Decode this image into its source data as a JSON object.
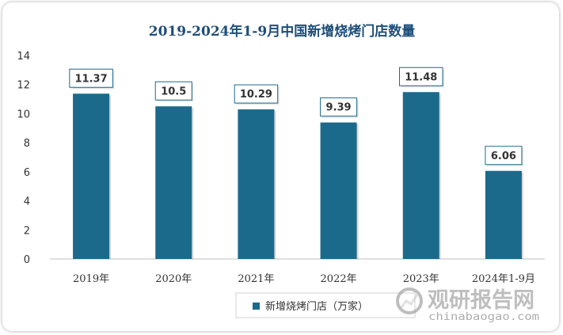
{
  "chart_data": {
    "type": "bar",
    "title": "2019-2024年1-9月中国新增烧烤门店数量",
    "categories": [
      "2019年",
      "2020年",
      "2021年",
      "2022年",
      "2023年",
      "2024年1-9月"
    ],
    "series": [
      {
        "name": "新增烧烤门店（万家）",
        "values": [
          11.37,
          10.5,
          10.29,
          9.39,
          11.48,
          6.06
        ]
      }
    ],
    "data_labels": [
      "11.37",
      "10.5",
      "10.29",
      "9.39",
      "11.48",
      "6.06"
    ],
    "ylim": [
      0,
      14
    ],
    "yticks": [
      0,
      2,
      4,
      6,
      8,
      10,
      12,
      14
    ],
    "xlabel": "",
    "ylabel": "",
    "grid": false,
    "legend_position": "bottom",
    "colors": {
      "bar": "#1b6a8c",
      "title": "#1f4e79",
      "label_border": "#1b6a8c"
    }
  },
  "watermark": {
    "text_cn": "观研报告网",
    "text_en": "chinabaogao.com"
  }
}
